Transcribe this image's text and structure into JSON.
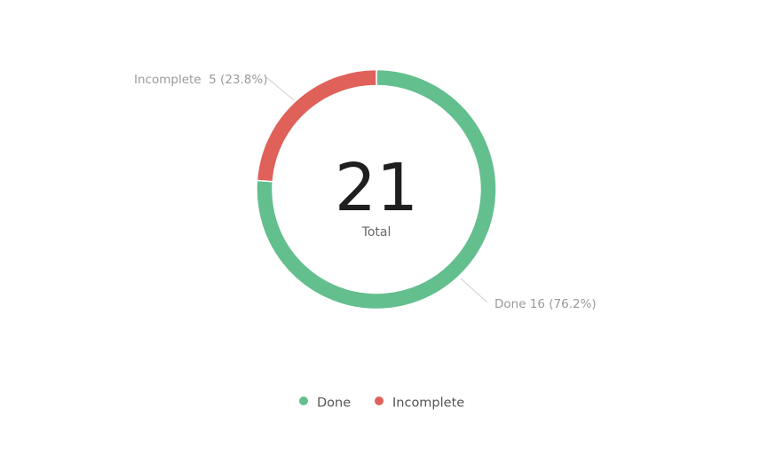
{
  "chart_data": {
    "type": "pie",
    "variant": "donut",
    "total": {
      "value": "21",
      "label": "Total"
    },
    "slices": [
      {
        "name": "Done",
        "value": 16,
        "percent": "76.2%",
        "label": "Done 16 (76.2%)",
        "color": "#63bf8e"
      },
      {
        "name": "Incomplete",
        "value": 5,
        "percent": "23.8%",
        "label": "Incomplete  5 (23.8%)",
        "color": "#e0605a"
      }
    ],
    "legend": {
      "position": "bottom",
      "items": [
        {
          "label": "Done",
          "color": "#63bf8e"
        },
        {
          "label": "Incomplete",
          "color": "#e0605a"
        }
      ]
    },
    "leader_line_color": "#cfcfcf"
  }
}
